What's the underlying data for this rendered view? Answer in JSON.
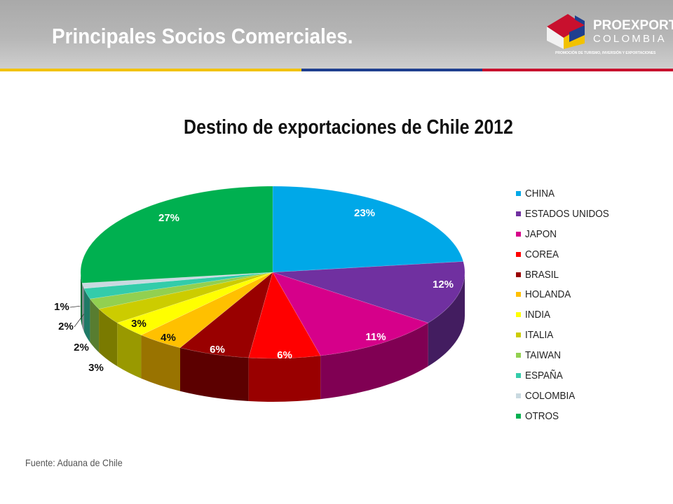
{
  "header": {
    "title": "Principales Socios Comerciales.",
    "logo": {
      "word1": "PROEXPORT",
      "word2": "COLOMBIA",
      "tagline": "PROMOCIÓN DE TURISMO, INVERSIÓN Y EXPORTACIONES"
    },
    "stripe_colors": [
      "#f2c200",
      "#1f3f8f",
      "#c8102e"
    ]
  },
  "chart_data": {
    "type": "pie",
    "title": "Destino de exportaciones de Chile 2012",
    "legend_position": "right",
    "slices": [
      {
        "label": "CHINA",
        "value": 23,
        "display": "23%",
        "color": "#00a8e8"
      },
      {
        "label": "ESTADOS UNIDOS",
        "value": 12,
        "display": "12%",
        "color": "#7030a0"
      },
      {
        "label": "JAPON",
        "value": 11,
        "display": "11%",
        "color": "#d6008a"
      },
      {
        "label": "COREA",
        "value": 6,
        "display": "6%",
        "color": "#ff0000"
      },
      {
        "label": "BRASIL",
        "value": 6,
        "display": "6%",
        "color": "#990000"
      },
      {
        "label": "HOLANDA",
        "value": 4,
        "display": "4%",
        "color": "#ffc000"
      },
      {
        "label": "INDIA",
        "value": 3,
        "display": "3%",
        "color": "#ffff00"
      },
      {
        "label": "ITALIA",
        "value": 3,
        "display": "3%",
        "color": "#cccc00"
      },
      {
        "label": "TAIWAN",
        "value": 2,
        "display": "2%",
        "color": "#92d050"
      },
      {
        "label": "ESPAÑA",
        "value": 2,
        "display": "2%",
        "color": "#33ccaa"
      },
      {
        "label": "COLOMBIA",
        "value": 1,
        "display": "1%",
        "color": "#c9d9e0"
      },
      {
        "label": "OTROS",
        "value": 27,
        "display": "27%",
        "color": "#00b050"
      }
    ]
  },
  "footer": {
    "source": "Fuente: Aduana de Chile"
  }
}
